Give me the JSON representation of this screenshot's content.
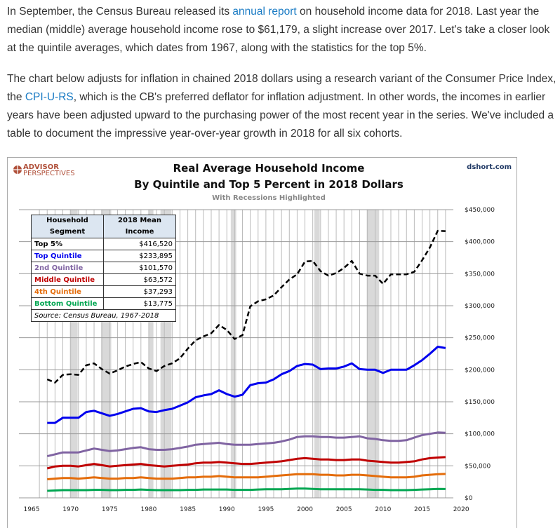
{
  "article": {
    "p1": [
      "In September, the Census Bureau released its ",
      "annual report",
      " on household income data for 2018. Last year the median (middle) average household income rose to $61,179, a slight increase over 2017. Let's take a closer look at the quintile averages, which dates from 1967, along with the statistics for the top 5%."
    ],
    "p2": [
      "The chart below adjusts for inflation in chained 2018 dollars using a research variant of the Consumer Price Index, the ",
      "CPI-U-RS",
      ", which is the CB's preferred deflator for inflation adjustment. In other words, the incomes in earlier years have been adjusted upward to the purchasing power of the most recent year in the series. We've included a table to document the impressive year-over-year growth in 2018 for all six cohorts."
    ],
    "link_color": "#1a7bc4"
  },
  "chart_data": {
    "type": "line",
    "logo": "ADVISOR PERSPECTIVES",
    "source_site": "dshort.com",
    "title": [
      "Real Average Household Income",
      "By Quintile and Top 5 Percent in 2018  Dollars"
    ],
    "subtitle": "With Recessions Highlighted",
    "xlim": [
      1965,
      2020
    ],
    "xticks": [
      "1965",
      "1970",
      "1975",
      "1980",
      "1985",
      "1990",
      "1995",
      "2000",
      "2005",
      "2010",
      "2015",
      "2020"
    ],
    "ylim": [
      0,
      450000
    ],
    "yticks": [
      "$0",
      "$50,000",
      "$100,000",
      "$150,000",
      "$200,000",
      "$250,000",
      "$300,000",
      "$350,000",
      "$400,000",
      "$450,000"
    ],
    "y_axis_side": "right",
    "grid": true,
    "recessions": [
      [
        1969.9,
        1970.9
      ],
      [
        1973.9,
        1975.2
      ],
      [
        1980.0,
        1980.6
      ],
      [
        1981.5,
        1982.9
      ],
      [
        1990.5,
        1991.2
      ],
      [
        2001.2,
        2001.9
      ],
      [
        2007.9,
        2009.5
      ]
    ],
    "recession_color": "#d9d9d9",
    "x_start": 1967,
    "series": [
      {
        "name": "Top 5%",
        "color": "#000000",
        "dashed": true,
        "values": [
          185000,
          180000,
          192000,
          193000,
          192000,
          207000,
          210000,
          201000,
          194000,
          199000,
          205000,
          209000,
          212000,
          202000,
          198000,
          206000,
          210000,
          218000,
          233000,
          246000,
          252000,
          257000,
          270000,
          262000,
          248000,
          254000,
          299000,
          307000,
          310000,
          316000,
          329000,
          341000,
          349000,
          369000,
          370000,
          354000,
          347000,
          351000,
          359000,
          370000,
          350000,
          347000,
          347000,
          334000,
          349000,
          349000,
          349000,
          353000,
          371000,
          391000,
          417000,
          416520
        ]
      },
      {
        "name": "Top Quintile",
        "color": "#0000ee",
        "values": [
          117000,
          117000,
          125000,
          125000,
          125000,
          134000,
          136000,
          132000,
          128000,
          131000,
          135000,
          139000,
          140000,
          135000,
          134000,
          137000,
          139000,
          144000,
          149000,
          157000,
          160000,
          162000,
          168000,
          162000,
          158000,
          161000,
          176000,
          179000,
          180000,
          185000,
          193000,
          198000,
          206000,
          209000,
          208000,
          201000,
          202000,
          202000,
          205000,
          210000,
          201000,
          200000,
          200000,
          195000,
          200000,
          200000,
          200000,
          207000,
          215000,
          225000,
          236000,
          233895
        ]
      },
      {
        "name": "2nd Quintile",
        "color": "#8064a2",
        "values": [
          65000,
          68000,
          71000,
          71000,
          71000,
          74000,
          77000,
          75000,
          73000,
          74000,
          76000,
          78000,
          79000,
          76000,
          75000,
          75000,
          76000,
          78000,
          80000,
          83000,
          84000,
          85000,
          86000,
          84000,
          83000,
          83000,
          83000,
          84000,
          85000,
          86000,
          88000,
          91000,
          95000,
          96000,
          96000,
          95000,
          95000,
          94000,
          94000,
          95000,
          96000,
          93000,
          92000,
          90000,
          89000,
          89000,
          90000,
          94000,
          98000,
          100000,
          102000,
          101570
        ]
      },
      {
        "name": "Middle Quintile",
        "color": "#c00000",
        "values": [
          46000,
          49000,
          50000,
          50000,
          49000,
          51000,
          53000,
          51000,
          49000,
          50000,
          51000,
          52000,
          53000,
          51000,
          50000,
          49000,
          50000,
          51000,
          52000,
          54000,
          55000,
          55000,
          56000,
          55000,
          54000,
          53000,
          53000,
          54000,
          55000,
          56000,
          57000,
          59000,
          61000,
          62000,
          61000,
          60000,
          60000,
          59000,
          59000,
          60000,
          60000,
          58000,
          57000,
          56000,
          55000,
          55000,
          56000,
          57000,
          60000,
          62000,
          63000,
          63572
        ]
      },
      {
        "name": "4th Quintile",
        "color": "#e46c0a",
        "values": [
          29000,
          30000,
          31000,
          31000,
          30000,
          31000,
          32000,
          31000,
          30000,
          30000,
          31000,
          31000,
          32000,
          31000,
          30000,
          30000,
          30000,
          31000,
          32000,
          32000,
          33000,
          33000,
          34000,
          33000,
          32000,
          32000,
          32000,
          32000,
          33000,
          34000,
          35000,
          36000,
          37000,
          37000,
          37000,
          36000,
          36000,
          35000,
          35000,
          36000,
          36000,
          35000,
          34000,
          33000,
          32000,
          32000,
          32000,
          33000,
          35000,
          36000,
          37000,
          37293
        ]
      },
      {
        "name": "Bottom Quintile",
        "color": "#00a651",
        "values": [
          11000,
          11500,
          12000,
          12000,
          12000,
          12000,
          12500,
          12500,
          12000,
          12000,
          12500,
          12500,
          13000,
          12500,
          12000,
          12000,
          12000,
          12000,
          12500,
          12500,
          13000,
          13000,
          13000,
          13000,
          12500,
          12500,
          12500,
          13000,
          13500,
          13500,
          13500,
          14000,
          14500,
          14500,
          14000,
          13500,
          13500,
          13500,
          13500,
          13500,
          13500,
          13000,
          12500,
          12500,
          12000,
          12000,
          12000,
          12500,
          13000,
          13500,
          14000,
          13775
        ]
      }
    ],
    "table": {
      "headers": [
        "Household Segment",
        "2018 Mean Income"
      ],
      "rows": [
        {
          "segment": "Top 5%",
          "income": "$416,520",
          "color": "#000000"
        },
        {
          "segment": "Top Quintile",
          "income": "$233,895",
          "color": "#0000ee"
        },
        {
          "segment": "2nd Quintile",
          "income": "$101,570",
          "color": "#8064a2"
        },
        {
          "segment": "Middle Quintile",
          "income": "$63,572",
          "color": "#c00000"
        },
        {
          "segment": "4th Quintile",
          "income": "$37,293",
          "color": "#e46c0a"
        },
        {
          "segment": "Bottom Quintile",
          "income": "$13,775",
          "color": "#00a651"
        }
      ],
      "source": "Source: Census Bureau, 1967-2018"
    }
  }
}
